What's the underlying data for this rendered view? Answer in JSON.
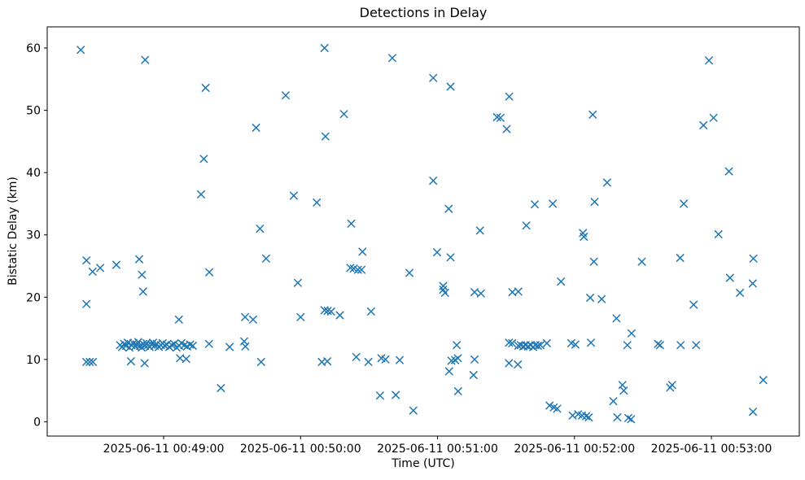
{
  "title": "Detections in Delay",
  "xlabel": "Time (UTC)",
  "ylabel": "Bistatic Delay (km)",
  "chart_data": {
    "type": "scatter",
    "marker": "x",
    "marker_color": "#1f77b4",
    "background_color": "#ffffff",
    "axis_color": "#000000",
    "grid": false,
    "legend": null,
    "x_unit": "seconds since 2025-06-11 00:48:00 UTC",
    "xlim": [
      9,
      338.5
    ],
    "ylim": [
      -2.3,
      63.4
    ],
    "x_ticks": [
      {
        "t": 60,
        "label": "2025-06-11 00:49:00"
      },
      {
        "t": 120,
        "label": "2025-06-11 00:50:00"
      },
      {
        "t": 180,
        "label": "2025-06-11 00:51:00"
      },
      {
        "t": 240,
        "label": "2025-06-11 00:52:00"
      },
      {
        "t": 300,
        "label": "2025-06-11 00:53:00"
      }
    ],
    "y_ticks": [
      0,
      10,
      20,
      30,
      40,
      50,
      60
    ],
    "points": [
      [
        23.7,
        59.7
      ],
      [
        26.2,
        25.9
      ],
      [
        26.2,
        18.9
      ],
      [
        26.1,
        9.6
      ],
      [
        27.6,
        9.6
      ],
      [
        29.0,
        9.6
      ],
      [
        28.9,
        24.1
      ],
      [
        32.2,
        24.7
      ],
      [
        39.3,
        25.2
      ],
      [
        40.9,
        12.3
      ],
      [
        41.8,
        12.0
      ],
      [
        42.7,
        12.5
      ],
      [
        43.6,
        12.2
      ],
      [
        44.3,
        12.7
      ],
      [
        45.0,
        11.9
      ],
      [
        45.9,
        12.3
      ],
      [
        46.8,
        12.6
      ],
      [
        47.5,
        12.1
      ],
      [
        48.2,
        12.4
      ],
      [
        48.9,
        12.8
      ],
      [
        49.7,
        12.2
      ],
      [
        50.4,
        11.9
      ],
      [
        51.1,
        12.5
      ],
      [
        51.8,
        12.2
      ],
      [
        52.5,
        12.6
      ],
      [
        53.2,
        12.3
      ],
      [
        53.9,
        12.0
      ],
      [
        54.7,
        12.4
      ],
      [
        55.4,
        12.7
      ],
      [
        56.1,
        12.2
      ],
      [
        57.0,
        12.5
      ],
      [
        57.9,
        12.0
      ],
      [
        58.8,
        12.3
      ],
      [
        59.6,
        12.6
      ],
      [
        60.5,
        12.2
      ],
      [
        61.4,
        12.4
      ],
      [
        62.5,
        12.0
      ],
      [
        63.6,
        12.3
      ],
      [
        64.6,
        12.5
      ],
      [
        65.7,
        11.9
      ],
      [
        66.8,
        12.2
      ],
      [
        67.8,
        12.6
      ],
      [
        69.1,
        12.3
      ],
      [
        70.3,
        12.1
      ],
      [
        71.6,
        12.4
      ],
      [
        72.8,
        12.2
      ],
      [
        79.9,
        12.5
      ],
      [
        45.7,
        9.7
      ],
      [
        49.3,
        26.1
      ],
      [
        50.5,
        23.6
      ],
      [
        51.0,
        20.9
      ],
      [
        51.9,
        58.1
      ],
      [
        51.7,
        9.4
      ],
      [
        66.7,
        16.4
      ],
      [
        67.2,
        10.2
      ],
      [
        69.9,
        10.1
      ],
      [
        76.4,
        36.5
      ],
      [
        77.6,
        42.2
      ],
      [
        78.4,
        53.6
      ],
      [
        80.0,
        24.0
      ],
      [
        85.1,
        5.4
      ],
      [
        88.9,
        12.0
      ],
      [
        95.3,
        12.9
      ],
      [
        95.8,
        12.1
      ],
      [
        95.7,
        16.8
      ],
      [
        99.2,
        16.4
      ],
      [
        100.5,
        47.2
      ],
      [
        102.2,
        31.0
      ],
      [
        102.7,
        9.6
      ],
      [
        104.9,
        26.2
      ],
      [
        113.5,
        52.4
      ],
      [
        117.0,
        36.3
      ],
      [
        118.8,
        22.3
      ],
      [
        120.0,
        16.8
      ],
      [
        127.1,
        35.2
      ],
      [
        129.3,
        9.6
      ],
      [
        130.5,
        60.0
      ],
      [
        130.5,
        17.9
      ],
      [
        130.9,
        45.8
      ],
      [
        131.9,
        17.8
      ],
      [
        131.7,
        9.7
      ],
      [
        133.4,
        17.7
      ],
      [
        137.2,
        17.1
      ],
      [
        139.0,
        49.4
      ],
      [
        141.8,
        24.7
      ],
      [
        142.2,
        31.8
      ],
      [
        143.3,
        24.6
      ],
      [
        144.4,
        10.4
      ],
      [
        145.1,
        24.4
      ],
      [
        146.7,
        24.4
      ],
      [
        147.1,
        27.3
      ],
      [
        149.7,
        9.6
      ],
      [
        150.9,
        17.7
      ],
      [
        154.8,
        4.2
      ],
      [
        155.4,
        10.2
      ],
      [
        157.2,
        10.0
      ],
      [
        160.2,
        58.4
      ],
      [
        161.7,
        4.3
      ],
      [
        163.4,
        9.9
      ],
      [
        167.7,
        23.9
      ],
      [
        169.4,
        1.8
      ],
      [
        178.1,
        55.2
      ],
      [
        178.1,
        38.7
      ],
      [
        179.8,
        27.2
      ],
      [
        182.5,
        21.8
      ],
      [
        182.5,
        21.2
      ],
      [
        183.3,
        20.7
      ],
      [
        184.9,
        34.2
      ],
      [
        185.1,
        8.1
      ],
      [
        185.7,
        53.8
      ],
      [
        185.7,
        26.4
      ],
      [
        186.1,
        9.8
      ],
      [
        187.7,
        9.9
      ],
      [
        188.4,
        12.3
      ],
      [
        188.9,
        10.2
      ],
      [
        189.0,
        4.9
      ],
      [
        195.8,
        7.5
      ],
      [
        196.2,
        20.8
      ],
      [
        196.2,
        10.0
      ],
      [
        198.6,
        30.7
      ],
      [
        199.0,
        20.6
      ],
      [
        206.1,
        48.9
      ],
      [
        207.6,
        48.8
      ],
      [
        210.3,
        47.0
      ],
      [
        211.3,
        12.7
      ],
      [
        211.3,
        9.4
      ],
      [
        211.4,
        52.2
      ],
      [
        212.7,
        12.6
      ],
      [
        212.8,
        20.8
      ],
      [
        215.2,
        9.2
      ],
      [
        215.4,
        20.9
      ],
      [
        215.4,
        12.2
      ],
      [
        216.5,
        12.3
      ],
      [
        217.6,
        12.1
      ],
      [
        218.6,
        12.3
      ],
      [
        218.9,
        31.5
      ],
      [
        219.7,
        12.1
      ],
      [
        220.8,
        12.3
      ],
      [
        221.9,
        12.0
      ],
      [
        222.6,
        34.9
      ],
      [
        222.9,
        12.3
      ],
      [
        224.0,
        12.2
      ],
      [
        225.1,
        12.3
      ],
      [
        227.9,
        12.6
      ],
      [
        229.1,
        2.6
      ],
      [
        230.5,
        35.0
      ],
      [
        230.9,
        2.3
      ],
      [
        232.4,
        2.1
      ],
      [
        234.1,
        22.5
      ],
      [
        238.6,
        12.6
      ],
      [
        239.2,
        1.0
      ],
      [
        240.4,
        12.4
      ],
      [
        241.6,
        1.2
      ],
      [
        243.3,
        1.0
      ],
      [
        243.7,
        30.3
      ],
      [
        244.1,
        29.7
      ],
      [
        245.1,
        0.9
      ],
      [
        246.3,
        0.7
      ],
      [
        246.9,
        19.9
      ],
      [
        247.2,
        12.7
      ],
      [
        248.0,
        49.3
      ],
      [
        248.5,
        25.7
      ],
      [
        248.8,
        35.3
      ],
      [
        251.9,
        19.7
      ],
      [
        254.3,
        38.4
      ],
      [
        257.0,
        3.3
      ],
      [
        258.4,
        16.6
      ],
      [
        258.8,
        0.7
      ],
      [
        261.0,
        5.9
      ],
      [
        261.6,
        5.0
      ],
      [
        263.2,
        12.3
      ],
      [
        263.6,
        0.6
      ],
      [
        264.8,
        0.4
      ],
      [
        265.0,
        14.2
      ],
      [
        269.5,
        25.7
      ],
      [
        276.6,
        12.5
      ],
      [
        277.5,
        12.3
      ],
      [
        281.9,
        5.5
      ],
      [
        282.8,
        5.9
      ],
      [
        286.3,
        26.3
      ],
      [
        286.5,
        12.3
      ],
      [
        287.9,
        35.0
      ],
      [
        292.2,
        18.8
      ],
      [
        293.3,
        12.3
      ],
      [
        296.5,
        47.6
      ],
      [
        298.9,
        58.0
      ],
      [
        300.9,
        48.8
      ],
      [
        303.1,
        30.1
      ],
      [
        307.7,
        40.2
      ],
      [
        308.1,
        23.1
      ],
      [
        312.5,
        20.7
      ],
      [
        318.1,
        22.2
      ],
      [
        318.4,
        26.2
      ],
      [
        318.2,
        1.6
      ],
      [
        322.7,
        6.7
      ]
    ]
  }
}
